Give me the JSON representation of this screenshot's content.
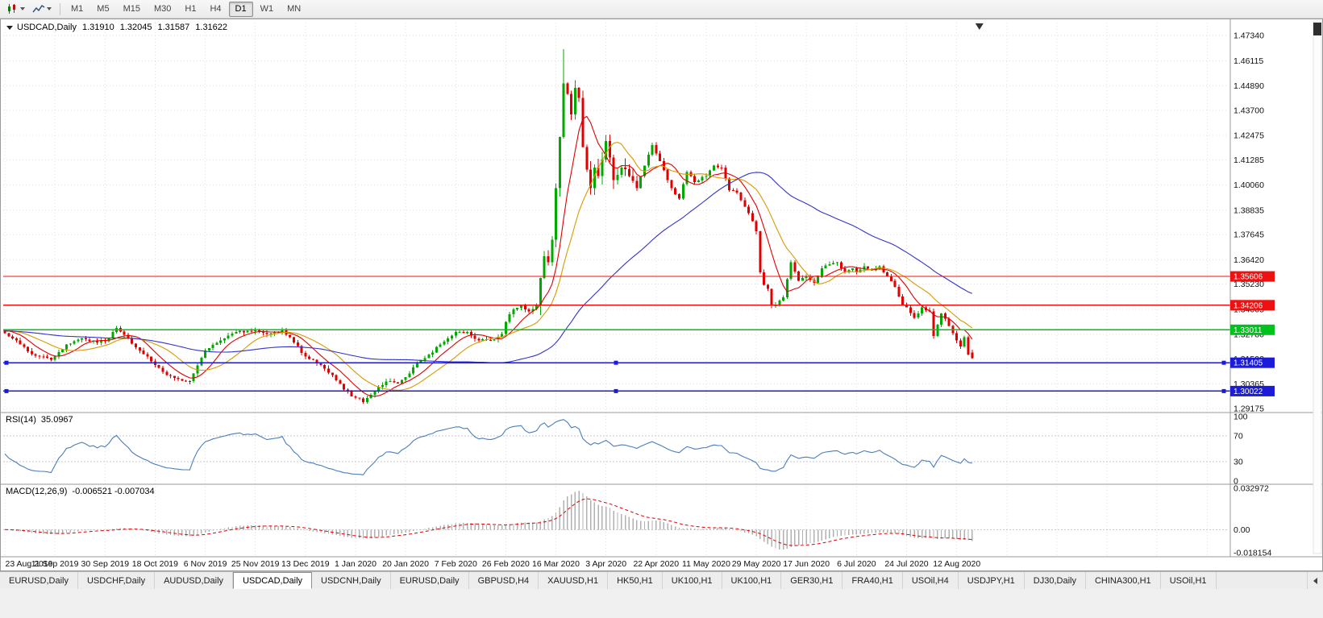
{
  "toolbar": {
    "timeframes": [
      "M1",
      "M5",
      "M15",
      "M30",
      "H1",
      "H4",
      "D1",
      "W1",
      "MN"
    ],
    "active_timeframe": "D1"
  },
  "icons": {
    "chevron-down-icon": "▾",
    "one-click-trading-collapse-icon": "▼",
    "chart-shift-marker": "▼",
    "tab-scroll-left-icon": "◂"
  },
  "chart": {
    "title": "USDCAD,Daily",
    "quote": {
      "open": "1.31910",
      "high": "1.32045",
      "low": "1.31587",
      "close": "1.31622"
    },
    "price_axis": [
      "1.47340",
      "1.46115",
      "1.44890",
      "1.43700",
      "1.42475",
      "1.41285",
      "1.40060",
      "1.38835",
      "1.37645",
      "1.36420",
      "1.35230",
      "1.34005",
      "1.32780",
      "1.31590",
      "1.30365",
      "1.29175"
    ],
    "date_axis": [
      "23 Aug 2019",
      "11 Sep 2019",
      "30 Sep 2019",
      "18 Oct 2019",
      "6 Nov 2019",
      "25 Nov 2019",
      "13 Dec 2019",
      "1 Jan 2020",
      "20 Jan 2020",
      "7 Feb 2020",
      "26 Feb 2020",
      "16 Mar 2020",
      "3 Apr 2020",
      "22 Apr 2020",
      "11 May 2020",
      "29 May 2020",
      "17 Jun 2020",
      "6 Jul 2020",
      "24 Jul 2020",
      "12 Aug 2020"
    ],
    "horizontal_lines": [
      {
        "label": "1.35606",
        "price": 1.35606,
        "color": "#ee1111",
        "selected": false
      },
      {
        "label": "1.34206",
        "price": 1.34206,
        "color": "#ee1111",
        "selected": false
      },
      {
        "label": "1.33011",
        "price": 1.33011,
        "color": "#00c21d",
        "selected": false
      },
      {
        "label": "1.31405",
        "price": 1.31405,
        "color": "#1c1cd8",
        "selected": true
      },
      {
        "label": "1.30022",
        "price": 1.30022,
        "color": "#1c1cd8",
        "selected": true
      }
    ]
  },
  "rsi": {
    "label": "RSI(14)",
    "value": "35.0967",
    "axis": [
      "100",
      "70",
      "30",
      "0"
    ],
    "levels": [
      70,
      30
    ],
    "color": "#4a7ebb"
  },
  "macd": {
    "label": "MACD(12,26,9)",
    "values": "-0.006521 -0.007034",
    "axis_max": "0.032972",
    "axis_zero": "0.00",
    "axis_min": "-0.018154",
    "histogram_color": "#b0b0b0",
    "signal_color": "#e00000"
  },
  "tabs": {
    "items": [
      "EURUSD,Daily",
      "USDCHF,Daily",
      "AUDUSD,Daily",
      "USDCAD,Daily",
      "USDCNH,Daily",
      "EURUSD,Daily",
      "GBPUSD,H4",
      "XAUUSD,H1",
      "HK50,H1",
      "UK100,H1",
      "UK100,H1",
      "GER30,H1",
      "FRA40,H1",
      "USOil,H4",
      "USDJPY,H1",
      "DJ30,Daily",
      "CHINA300,H1",
      "USOil,H1"
    ],
    "active_index": 3
  },
  "chart_data": {
    "type": "candlestick",
    "symbol": "USDCAD",
    "period": "Daily",
    "bars": 252,
    "bars_per_date_label": 13,
    "visible_price_range": [
      1.2898,
      1.4797
    ],
    "spike_high": 1.4668,
    "last_bar_ohlc": [
      1.3191,
      1.32045,
      1.31587,
      1.31622
    ],
    "up_color": "#00a800",
    "down_color": "#e00000",
    "moving_averages": [
      {
        "name": "fast",
        "period": 8,
        "color": "#e00000"
      },
      {
        "name": "mid",
        "period": 16,
        "color": "#d99a00"
      },
      {
        "name": "slow",
        "period": 55,
        "color": "#3333cc"
      }
    ],
    "close_anchors": [
      [
        0,
        1.3285
      ],
      [
        4,
        1.323
      ],
      [
        8,
        1.3175
      ],
      [
        12,
        1.3155
      ],
      [
        16,
        1.323
      ],
      [
        20,
        1.326
      ],
      [
        24,
        1.324
      ],
      [
        26,
        1.3245
      ],
      [
        29,
        1.331
      ],
      [
        32,
        1.326
      ],
      [
        35,
        1.32
      ],
      [
        39,
        1.313
      ],
      [
        42,
        1.308
      ],
      [
        45,
        1.306
      ],
      [
        48,
        1.305
      ],
      [
        52,
        1.32
      ],
      [
        56,
        1.325
      ],
      [
        60,
        1.329
      ],
      [
        65,
        1.33
      ],
      [
        68,
        1.328
      ],
      [
        72,
        1.33
      ],
      [
        75,
        1.324
      ],
      [
        78,
        1.317
      ],
      [
        82,
        1.313
      ],
      [
        85,
        1.308
      ],
      [
        88,
        1.301
      ],
      [
        91,
        1.297
      ],
      [
        93,
        1.295
      ],
      [
        96,
        1.3
      ],
      [
        99,
        1.305
      ],
      [
        102,
        1.304
      ],
      [
        104,
        1.307
      ],
      [
        107,
        1.314
      ],
      [
        110,
        1.318
      ],
      [
        113,
        1.323
      ],
      [
        117,
        1.329
      ],
      [
        120,
        1.329
      ],
      [
        123,
        1.325
      ],
      [
        126,
        1.325
      ],
      [
        129,
        1.328
      ],
      [
        130,
        1.334
      ],
      [
        132,
        1.34
      ],
      [
        134,
        1.342
      ],
      [
        136,
        1.339
      ],
      [
        138,
        1.342
      ],
      [
        140,
        1.366
      ],
      [
        141,
        1.363
      ],
      [
        142,
        1.374
      ],
      [
        143,
        1.399
      ],
      [
        144,
        1.424
      ],
      [
        145,
        1.45
      ],
      [
        146,
        1.445
      ],
      [
        147,
        1.435
      ],
      [
        148,
        1.448
      ],
      [
        149,
        1.443
      ],
      [
        150,
        1.419
      ],
      [
        151,
        1.408
      ],
      [
        152,
        1.399
      ],
      [
        153,
        1.409
      ],
      [
        154,
        1.405
      ],
      [
        155,
        1.413
      ],
      [
        156,
        1.422
      ],
      [
        158,
        1.403
      ],
      [
        160,
        1.409
      ],
      [
        162,
        1.405
      ],
      [
        164,
        1.399
      ],
      [
        166,
        1.41
      ],
      [
        168,
        1.42
      ],
      [
        169,
        1.416
      ],
      [
        171,
        1.408
      ],
      [
        173,
        1.399
      ],
      [
        175,
        1.394
      ],
      [
        177,
        1.407
      ],
      [
        179,
        1.402
      ],
      [
        182,
        1.405
      ],
      [
        184,
        1.41
      ],
      [
        186,
        1.409
      ],
      [
        188,
        1.398
      ],
      [
        190,
        1.397
      ],
      [
        192,
        1.39
      ],
      [
        194,
        1.383
      ],
      [
        195,
        1.378
      ],
      [
        196,
        1.358
      ],
      [
        197,
        1.352
      ],
      [
        198,
        1.35
      ],
      [
        199,
        1.342
      ],
      [
        200,
        1.342
      ],
      [
        202,
        1.346
      ],
      [
        204,
        1.363
      ],
      [
        206,
        1.354
      ],
      [
        208,
        1.356
      ],
      [
        210,
        1.353
      ],
      [
        212,
        1.36
      ],
      [
        214,
        1.362
      ],
      [
        216,
        1.363
      ],
      [
        218,
        1.358
      ],
      [
        220,
        1.36
      ],
      [
        221,
        1.358
      ],
      [
        223,
        1.361
      ],
      [
        225,
        1.359
      ],
      [
        227,
        1.361
      ],
      [
        229,
        1.356
      ],
      [
        231,
        1.351
      ],
      [
        233,
        1.342
      ],
      [
        234,
        1.341
      ],
      [
        236,
        1.336
      ],
      [
        238,
        1.341
      ],
      [
        240,
        1.339
      ],
      [
        241,
        1.327
      ],
      [
        243,
        1.338
      ],
      [
        245,
        1.332
      ],
      [
        247,
        1.325
      ],
      [
        248,
        1.322
      ],
      [
        249,
        1.3265
      ],
      [
        250,
        1.318
      ],
      [
        251,
        1.3162
      ]
    ]
  }
}
